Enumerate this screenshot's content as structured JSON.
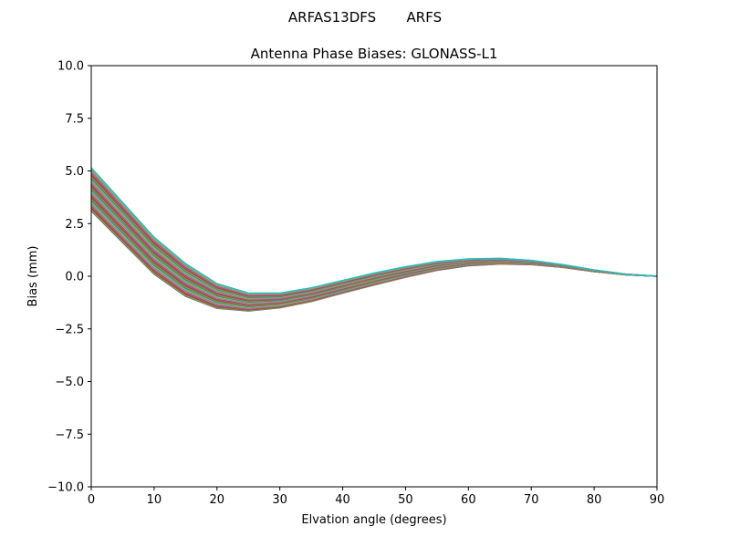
{
  "figure": {
    "suptitle": "ARFAS13DFS       ARFS"
  },
  "chart_data": {
    "type": "line",
    "title": "Antenna Phase Biases: GLONASS-L1",
    "xlabel": "Elvation angle (degrees)",
    "ylabel": "Bias (mm)",
    "xlim": [
      0,
      90
    ],
    "ylim": [
      -10,
      10
    ],
    "xticks": [
      0,
      10,
      20,
      30,
      40,
      50,
      60,
      70,
      80,
      90
    ],
    "yticks": [
      -10.0,
      -7.5,
      -5.0,
      -2.5,
      0.0,
      2.5,
      5.0,
      7.5,
      10.0
    ],
    "xtick_labels": [
      "0",
      "10",
      "20",
      "30",
      "40",
      "50",
      "60",
      "70",
      "80",
      "90"
    ],
    "ytick_labels": [
      "−10.0",
      "−7.5",
      "−5.0",
      "−2.5",
      "0.0",
      "2.5",
      "5.0",
      "7.5",
      "10.0"
    ],
    "grid": false,
    "legend": "none",
    "x": [
      0,
      5,
      10,
      15,
      20,
      25,
      30,
      35,
      40,
      45,
      50,
      55,
      60,
      65,
      70,
      75,
      80,
      85,
      90
    ],
    "envelope": {
      "upper": [
        5.15,
        3.5,
        1.85,
        0.6,
        -0.35,
        -0.8,
        -0.8,
        -0.55,
        -0.2,
        0.15,
        0.45,
        0.7,
        0.82,
        0.85,
        0.75,
        0.55,
        0.3,
        0.1,
        0.0
      ],
      "lower": [
        3.1,
        1.6,
        0.1,
        -0.95,
        -1.52,
        -1.65,
        -1.5,
        -1.2,
        -0.8,
        -0.42,
        -0.05,
        0.28,
        0.5,
        0.58,
        0.55,
        0.42,
        0.22,
        0.07,
        0.0
      ]
    },
    "series_count": 40,
    "series_colors": [
      "#1f77b4",
      "#ff7f0e",
      "#2ca02c",
      "#d62728",
      "#9467bd",
      "#8c564b",
      "#e377c2",
      "#7f7f7f",
      "#bcbd22",
      "#17becf"
    ]
  }
}
